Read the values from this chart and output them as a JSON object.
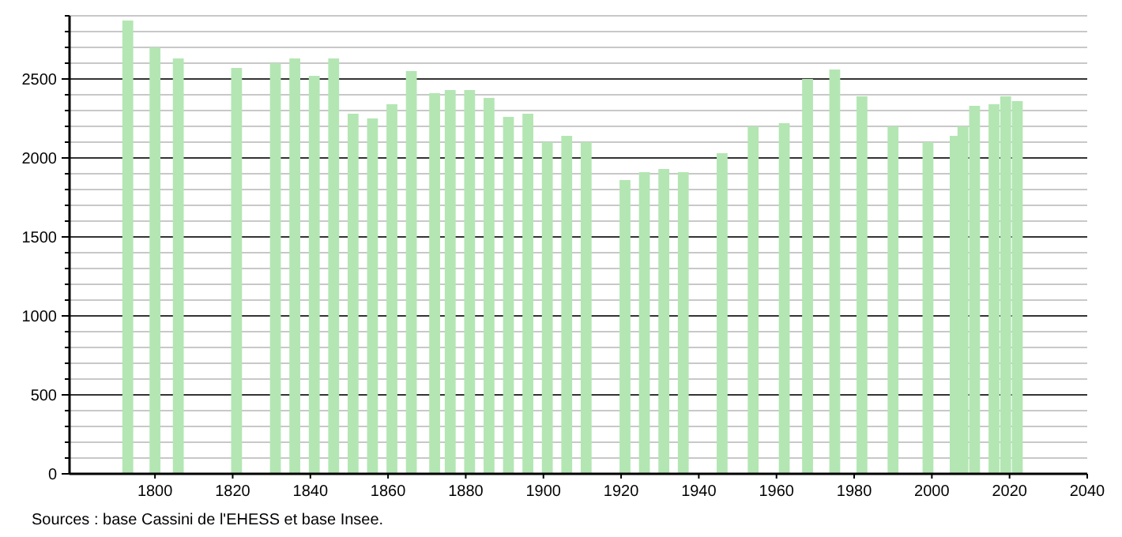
{
  "chart_data": {
    "type": "bar",
    "x": [
      1793,
      1800,
      1806,
      1821,
      1831,
      1836,
      1841,
      1846,
      1851,
      1856,
      1861,
      1866,
      1872,
      1876,
      1881,
      1886,
      1891,
      1896,
      1901,
      1906,
      1911,
      1921,
      1926,
      1931,
      1936,
      1946,
      1954,
      1962,
      1968,
      1975,
      1982,
      1990,
      1999,
      2006,
      2008,
      2011,
      2016,
      2019,
      2022
    ],
    "values": [
      2870,
      2700,
      2630,
      2570,
      2600,
      2630,
      2520,
      2630,
      2280,
      2250,
      2340,
      2550,
      2410,
      2430,
      2430,
      2380,
      2260,
      2280,
      2100,
      2140,
      2100,
      1860,
      1910,
      1930,
      1910,
      2030,
      2200,
      2220,
      2500,
      2560,
      2390,
      2200,
      2100,
      2140,
      2200,
      2330,
      2340,
      2390,
      2360
    ],
    "color": "#b3e6b3",
    "xlim": [
      1778,
      2040
    ],
    "xticks": [
      1800,
      1820,
      1840,
      1860,
      1880,
      1900,
      1920,
      1940,
      1960,
      1980,
      2000,
      2020,
      2040
    ],
    "ylim": [
      0,
      2900
    ],
    "yticks": [
      0,
      {
        "value": 100,
        "label": null
      },
      {
        "value": 200,
        "label": null
      },
      {
        "value": 300,
        "label": null
      },
      {
        "value": 400,
        "label": null
      },
      500,
      {
        "value": 600,
        "label": null
      },
      {
        "value": 700,
        "label": null
      },
      {
        "value": 800,
        "label": null
      },
      {
        "value": 900,
        "label": null
      },
      1000,
      {
        "value": 1100,
        "label": null
      },
      {
        "value": 1200,
        "label": null
      },
      {
        "value": 1300,
        "label": null
      },
      {
        "value": 1400,
        "label": null
      },
      1500,
      {
        "value": 1600,
        "label": null
      },
      {
        "value": 1700,
        "label": null
      },
      {
        "value": 1800,
        "label": null
      },
      {
        "value": 1900,
        "label": null
      },
      2000,
      {
        "value": 2100,
        "label": null
      },
      {
        "value": 2200,
        "label": null
      },
      {
        "value": 2300,
        "label": null
      },
      {
        "value": 2400,
        "label": null
      },
      2500,
      {
        "value": 2600,
        "label": null
      },
      {
        "value": 2700,
        "label": null
      },
      {
        "value": 2800,
        "label": null
      },
      {
        "value": 2900,
        "label": null
      }
    ],
    "grid": "y",
    "annotations": [
      "Sources : base Cassini de l'EHESS et base Insee."
    ]
  }
}
